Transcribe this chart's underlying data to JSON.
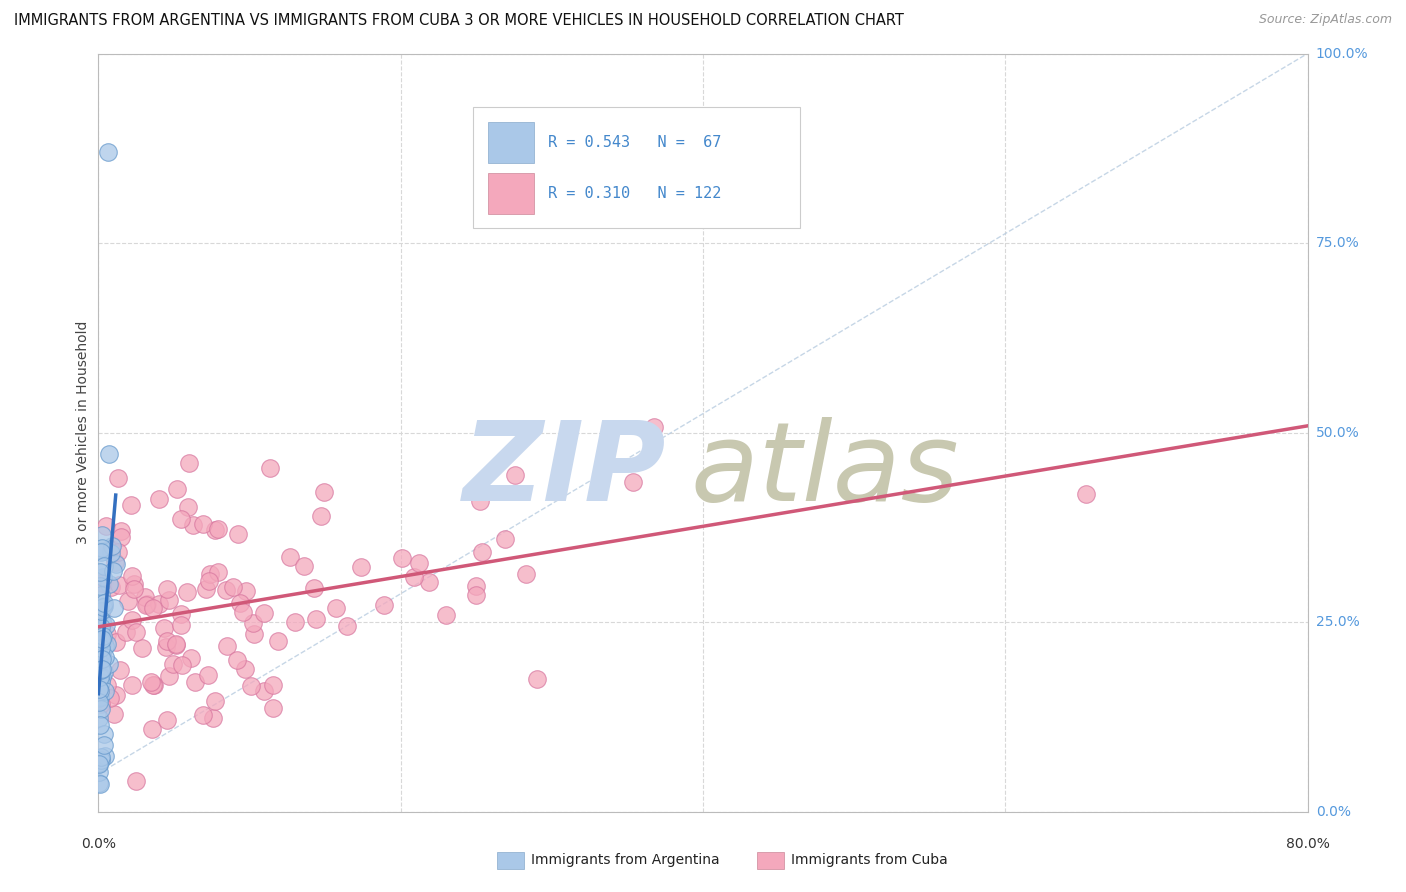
{
  "title": "IMMIGRANTS FROM ARGENTINA VS IMMIGRANTS FROM CUBA 3 OR MORE VEHICLES IN HOUSEHOLD CORRELATION CHART",
  "source": "Source: ZipAtlas.com",
  "ylabel": "3 or more Vehicles in Household",
  "xlim": [
    0.0,
    0.8
  ],
  "ylim": [
    0.0,
    1.0
  ],
  "argentina_color": "#aac8e8",
  "cuba_color": "#f4a8bc",
  "argentina_line_color": "#3370c0",
  "cuba_line_color": "#d05878",
  "argentina_R": 0.543,
  "argentina_N": 67,
  "cuba_R": 0.31,
  "cuba_N": 122,
  "grid_color": "#d8d8d8",
  "background_color": "#ffffff",
  "right_label_color": "#5599dd",
  "watermark_zip_color": "#c8d8ee",
  "watermark_atlas_color": "#c8c8b0"
}
